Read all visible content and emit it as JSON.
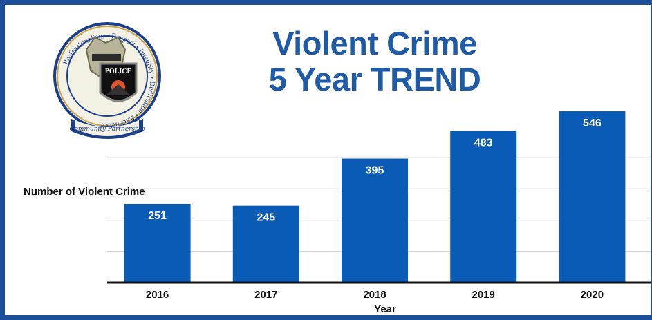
{
  "title_lines": [
    "Violent Crime",
    "5 Year TREND"
  ],
  "logo": {
    "ring_text": "Professionalism • Respect • Integrity • Dedication • Excellence",
    "banner_text": "Community Partnership",
    "shield_text": "POLICE"
  },
  "colors": {
    "bar": "#0a5bb5",
    "title": "#1f5aa6",
    "border": "#1d4e9a"
  },
  "chart_data": {
    "type": "bar",
    "title": "Violent Crime 5 Year TREND",
    "xlabel": "Year",
    "ylabel": "Number of Violent Crime",
    "categories": [
      "2016",
      "2017",
      "2018",
      "2019",
      "2020"
    ],
    "values": [
      251,
      245,
      395,
      483,
      546
    ],
    "data_labels": true,
    "grid": true,
    "ylim": [
      0,
      600
    ],
    "yticks_visible": false
  }
}
